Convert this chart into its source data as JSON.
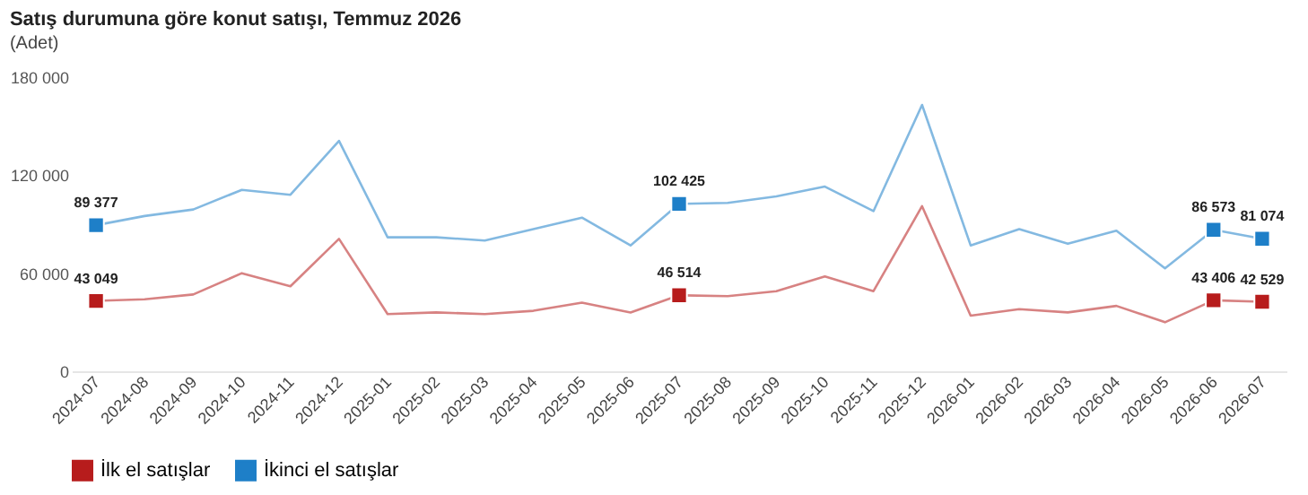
{
  "chart_data": {
    "type": "line",
    "title": "Satış durumuna göre konut satışı, Temmuz 2026",
    "subtitle": "(Adet)",
    "categories": [
      "2024-07",
      "2024-08",
      "2024-09",
      "2024-10",
      "2024-11",
      "2024-12",
      "2025-01",
      "2025-02",
      "2025-03",
      "2025-04",
      "2025-05",
      "2025-06",
      "2025-07",
      "2025-08",
      "2025-09",
      "2025-10",
      "2025-11",
      "2025-12",
      "2026-01",
      "2026-02",
      "2026-03",
      "2026-04",
      "2026-05",
      "2026-06",
      "2026-07"
    ],
    "series": [
      {
        "name": "İlk el satışlar",
        "color": "#b71c1c",
        "values": [
          43049,
          44000,
          47000,
          60000,
          52000,
          81000,
          35000,
          36000,
          35000,
          37000,
          42000,
          36000,
          46514,
          46000,
          49000,
          58000,
          49000,
          101000,
          34000,
          38000,
          36000,
          40000,
          30000,
          43406,
          42529
        ],
        "value_labels": [
          "43 049",
          null,
          null,
          null,
          null,
          null,
          null,
          null,
          null,
          null,
          null,
          null,
          "46 514",
          null,
          null,
          null,
          null,
          null,
          null,
          null,
          null,
          null,
          null,
          "43 406",
          "42 529"
        ]
      },
      {
        "name": "İkinci el satışlar",
        "color": "#1e7fc8",
        "values": [
          89377,
          95000,
          99000,
          111000,
          108000,
          141000,
          82000,
          82000,
          80000,
          87000,
          94000,
          77000,
          102425,
          103000,
          107000,
          113000,
          98000,
          163000,
          77000,
          87000,
          78000,
          86000,
          63000,
          86573,
          81074
        ],
        "value_labels": [
          "89 377",
          null,
          null,
          null,
          null,
          null,
          null,
          null,
          null,
          null,
          null,
          null,
          "102 425",
          null,
          null,
          null,
          null,
          null,
          null,
          null,
          null,
          null,
          null,
          "86 573",
          "81 074"
        ]
      }
    ],
    "ylim": [
      0,
      180000
    ],
    "yticks": [
      0,
      {
        "value": 60000,
        "label": "60 000"
      },
      {
        "value": 120000,
        "label": "120 000"
      },
      {
        "value": 180000,
        "label": "180 000"
      }
    ],
    "grid": false,
    "legend": "bottom",
    "line_style": "solid"
  }
}
